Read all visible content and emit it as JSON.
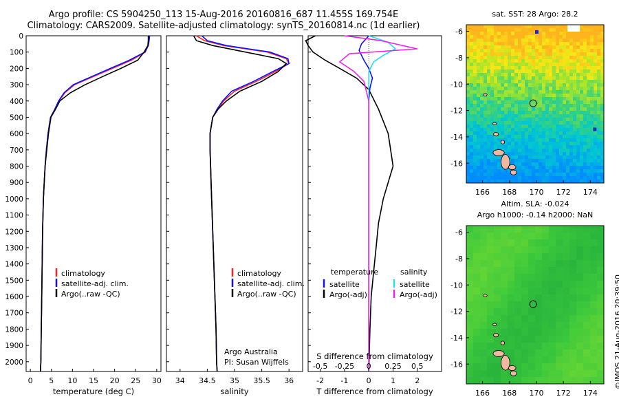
{
  "header": {
    "line1": "Argo profile: CS 5904250_113 15-Aug-2016 20160816_687 11.455S 169.754E",
    "line2": "Climatology: CARS2009. Satellite-adjusted climatology: synTS_20160814.nc (1d earlier)"
  },
  "timestamp": "©IMOS 21-Aug-2016 20:39:50",
  "colors": {
    "climatology": "#ff2020",
    "satellite": "#1010ff",
    "argo": "#000000",
    "salinity_satellite": "#20e0f0",
    "salinity_argo": "#f020f0"
  },
  "chart_data": [
    {
      "type": "line",
      "id": "temperature",
      "xlabel": "temperature (deg C)",
      "ylabel": "",
      "xlim": [
        -1,
        31
      ],
      "ylim": [
        2060,
        0
      ],
      "xticks": [
        0,
        5,
        10,
        15,
        20,
        25,
        30
      ],
      "yticks": [
        0,
        100,
        200,
        300,
        400,
        500,
        600,
        700,
        800,
        900,
        1000,
        1100,
        1200,
        1300,
        1400,
        1500,
        1600,
        1700,
        1800,
        1900,
        2000
      ],
      "legend": {
        "placement": "bottom-right",
        "entries": [
          "climatology",
          "satellite-adj. clim.",
          "Argo(..raw -QC)"
        ]
      },
      "series": [
        {
          "name": "climatology",
          "x": [
            28.2,
            28.1,
            28.0,
            27.3,
            24.0,
            19.5,
            15.0,
            10.5,
            8.2,
            6.8,
            5.9,
            4.8,
            4.2,
            3.8,
            3.5,
            3.3,
            3.1,
            2.9,
            2.8,
            2.7,
            2.6,
            2.5,
            2.4
          ],
          "y": [
            0,
            30,
            60,
            100,
            150,
            200,
            250,
            300,
            350,
            400,
            450,
            500,
            600,
            700,
            800,
            900,
            1000,
            1200,
            1400,
            1600,
            1800,
            2000,
            2060
          ]
        },
        {
          "name": "satellite-adj. clim.",
          "x": [
            28.3,
            28.2,
            28.0,
            27.2,
            23.5,
            19.0,
            14.6,
            10.2,
            8.0,
            6.7,
            5.8,
            4.8,
            4.2,
            3.8,
            3.5,
            3.3,
            3.1,
            2.9,
            2.8,
            2.7,
            2.6,
            2.5,
            2.4
          ],
          "y": [
            0,
            30,
            60,
            100,
            150,
            200,
            250,
            300,
            350,
            400,
            450,
            500,
            600,
            700,
            800,
            900,
            1000,
            1200,
            1400,
            1600,
            1800,
            2000,
            2060
          ]
        },
        {
          "name": "Argo(..raw -QC)",
          "x": [
            28.0,
            28.0,
            27.9,
            27.0,
            25.5,
            21.5,
            17.2,
            13.0,
            9.5,
            7.0,
            6.0,
            4.9,
            4.3,
            3.9,
            3.5,
            3.3,
            3.1,
            2.9,
            2.8,
            2.7,
            2.6,
            2.5,
            2.4
          ],
          "y": [
            0,
            30,
            60,
            100,
            150,
            200,
            250,
            300,
            350,
            400,
            450,
            500,
            600,
            700,
            800,
            900,
            1000,
            1200,
            1400,
            1600,
            1800,
            2000,
            2060
          ]
        }
      ]
    },
    {
      "type": "line",
      "id": "salinity",
      "xlabel": "salinity",
      "ylabel": "",
      "xlim": [
        33.75,
        36.25
      ],
      "ylim": [
        2060,
        0
      ],
      "xticks": [
        34,
        34.5,
        35,
        35.5,
        36
      ],
      "legend": {
        "placement": "bottom-right",
        "entries": [
          "climatology",
          "satellite-adj. clim.",
          "Argo(..raw -QC)"
        ]
      },
      "annotations": [
        "Argo Australia",
        "PI: Susan Wijffels"
      ],
      "series": [
        {
          "name": "climatology",
          "x": [
            34.3,
            34.45,
            34.8,
            35.6,
            35.95,
            36.0,
            35.75,
            35.4,
            35.0,
            34.8,
            34.7,
            34.6,
            34.55,
            34.55,
            34.56,
            34.57,
            34.58,
            34.6,
            34.62,
            34.64,
            34.66,
            34.67,
            34.68
          ],
          "y": [
            0,
            30,
            60,
            100,
            140,
            170,
            220,
            280,
            340,
            400,
            450,
            500,
            600,
            700,
            800,
            900,
            1000,
            1200,
            1400,
            1600,
            1800,
            2000,
            2060
          ]
        },
        {
          "name": "satellite-adj. clim.",
          "x": [
            34.4,
            34.5,
            34.85,
            35.65,
            35.98,
            36.0,
            35.7,
            35.35,
            34.95,
            34.78,
            34.68,
            34.6,
            34.55,
            34.55,
            34.56,
            34.57,
            34.58,
            34.6,
            34.62,
            34.64,
            34.66,
            34.67,
            34.68
          ],
          "y": [
            0,
            30,
            60,
            100,
            140,
            170,
            220,
            280,
            340,
            400,
            450,
            500,
            600,
            700,
            800,
            900,
            1000,
            1200,
            1400,
            1600,
            1800,
            2000,
            2060
          ]
        },
        {
          "name": "Argo(..raw -QC)",
          "x": [
            34.25,
            34.3,
            34.6,
            35.2,
            35.8,
            35.95,
            35.8,
            35.5,
            35.1,
            34.85,
            34.7,
            34.6,
            34.55,
            34.55,
            34.56,
            34.57,
            34.58,
            34.6,
            34.62,
            34.64,
            34.66,
            34.67,
            34.68
          ],
          "y": [
            0,
            30,
            60,
            100,
            140,
            170,
            220,
            280,
            340,
            400,
            450,
            500,
            600,
            700,
            800,
            900,
            1000,
            1200,
            1400,
            1600,
            1800,
            2000,
            2060
          ]
        }
      ]
    },
    {
      "type": "line",
      "id": "difference",
      "xlabel": "T difference from climatology",
      "xlabel_top": "S difference from climatology",
      "xlim": [
        -2.5,
        3
      ],
      "xticks": [
        -2,
        -1,
        0,
        1,
        2
      ],
      "xticks_top": [
        -0.5,
        -0.25,
        0,
        0.25,
        0.5
      ],
      "xticks_top_labels": [
        "-0.5",
        "-0.25",
        "0",
        "0.25",
        "0.5"
      ],
      "ylim": [
        2060,
        0
      ],
      "legend": {
        "placement": "bottom",
        "group_titles": [
          "temperature",
          "salinity"
        ],
        "entries": [
          "satellite",
          "Argo(-adj)",
          "satellite",
          "Argo(-adj)"
        ]
      },
      "series": [
        {
          "name": "satellite",
          "group": "temperature",
          "x": [
            0,
            -0.3,
            -0.4,
            -0.2,
            0,
            0.15,
            0.05,
            0,
            0,
            0,
            0,
            0,
            0,
            0
          ],
          "y": [
            0,
            50,
            90,
            150,
            200,
            260,
            320,
            400,
            500,
            700,
            1000,
            1400,
            1800,
            2060
          ]
        },
        {
          "name": "Argo(-adj)",
          "group": "temperature",
          "x": [
            -2.2,
            -2.6,
            -2.5,
            -2.3,
            -1.8,
            -1.2,
            -0.5,
            0,
            0.4,
            0.8,
            1.0,
            0.6,
            0.4,
            0.3,
            0.2,
            0.1,
            0.05,
            0
          ],
          "y": [
            0,
            30,
            60,
            100,
            150,
            200,
            260,
            330,
            450,
            600,
            800,
            1000,
            1150,
            1300,
            1450,
            1600,
            1800,
            2060
          ]
        },
        {
          "name": "satellite",
          "group": "salinity",
          "x": [
            0,
            0.8,
            1.1,
            0.6,
            0.2,
            0,
            0,
            0,
            0,
            0,
            0
          ],
          "y": [
            0,
            40,
            80,
            120,
            160,
            220,
            300,
            500,
            1000,
            1600,
            2060
          ]
        },
        {
          "name": "Argo(-adj)",
          "group": "salinity",
          "x": [
            -1.0,
            0.5,
            2.0,
            -0.8,
            -1.2,
            -0.6,
            -0.2,
            0,
            0,
            0,
            0
          ],
          "y": [
            0,
            30,
            80,
            110,
            160,
            220,
            280,
            400,
            800,
            1500,
            2060
          ]
        }
      ]
    },
    {
      "type": "heatmap",
      "id": "map-sst",
      "title": "sat. SST: 28 Argo: 28.2",
      "xlim": [
        164.8,
        175.0
      ],
      "ylim": [
        -17.5,
        -5.5
      ],
      "xticks": [
        166,
        168,
        170,
        172,
        174
      ],
      "yticks": [
        -6,
        -8,
        -10,
        -12,
        -14,
        -16
      ],
      "marker": {
        "lon": 169.754,
        "lat": -11.455
      }
    },
    {
      "type": "heatmap",
      "id": "map-sla",
      "title": "Altim. SLA: -0.024",
      "subtitle": "Argo h1000: -0.14 h2000: NaN",
      "xlim": [
        164.8,
        175.0
      ],
      "ylim": [
        -17.5,
        -5.5
      ],
      "xticks": [
        166,
        168,
        170,
        172,
        174
      ],
      "yticks": [
        -6,
        -8,
        -10,
        -12,
        -14,
        -16
      ],
      "marker": {
        "lon": 169.754,
        "lat": -11.455
      }
    }
  ]
}
